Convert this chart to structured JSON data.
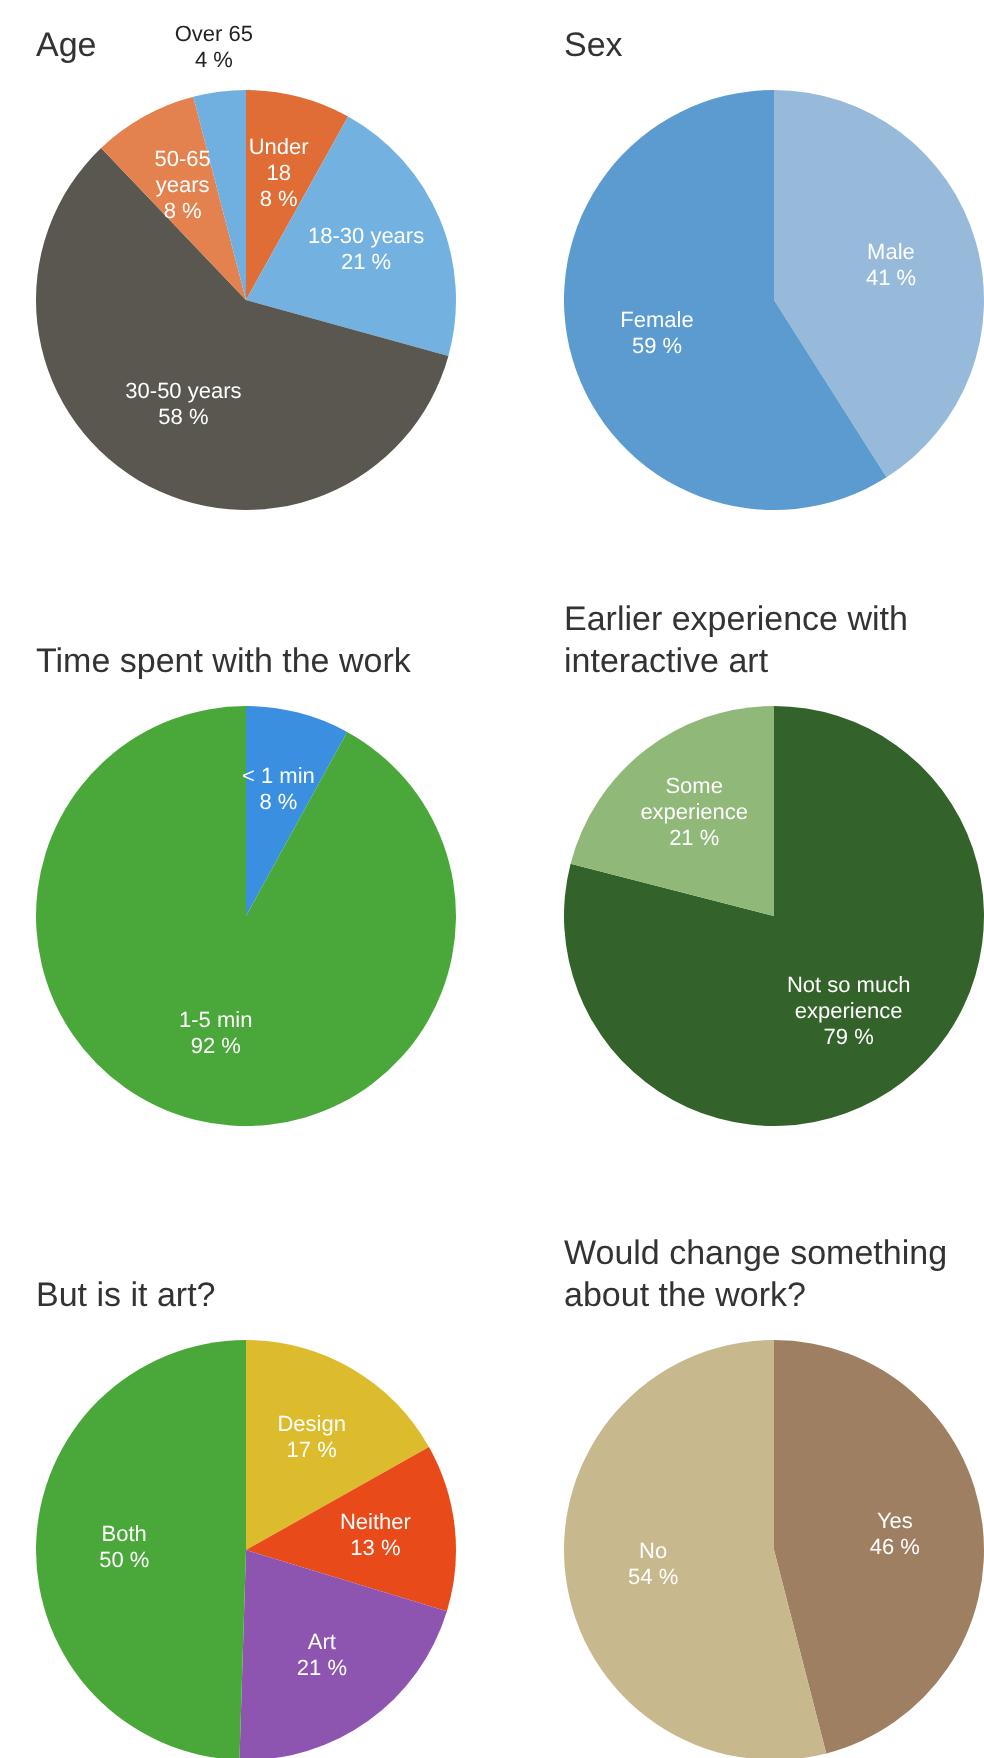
{
  "chart_data": [
    {
      "type": "pie",
      "title": "Age",
      "categories": [
        "Under 18",
        "18-30 years",
        "30-50 years",
        "50-65 years",
        "Over 65"
      ],
      "values": [
        8,
        21,
        58,
        8,
        4
      ],
      "value_labels": [
        "8 %",
        "21 %",
        "58 %",
        "8 %",
        "4 %"
      ],
      "colors": [
        "#e06d35",
        "#73b2e0",
        "#5a5650",
        "#e3814f",
        "#6fb0e0"
      ]
    },
    {
      "type": "pie",
      "title": "Sex",
      "categories": [
        "Male",
        "Female"
      ],
      "values": [
        41,
        59
      ],
      "value_labels": [
        "41 %",
        "59 %"
      ],
      "colors": [
        "#97bada",
        "#5b9bd0"
      ]
    },
    {
      "type": "pie",
      "title": "Time spent with the work",
      "categories": [
        "< 1 min",
        "1-5 min"
      ],
      "values": [
        8,
        92
      ],
      "value_labels": [
        "8 %",
        "92 %"
      ],
      "colors": [
        "#3a8fe0",
        "#4aa83a"
      ]
    },
    {
      "type": "pie",
      "title": "Earlier experience with interactive art",
      "categories": [
        "Not so much experience",
        "Some experience"
      ],
      "values": [
        79,
        21
      ],
      "value_labels": [
        "79 %",
        "21 %"
      ],
      "colors": [
        "#33622a",
        "#90b878"
      ]
    },
    {
      "type": "pie",
      "title": "But is it art?",
      "categories": [
        "Design",
        "Neither",
        "Art",
        "Both"
      ],
      "values": [
        17,
        13,
        21,
        50
      ],
      "value_labels": [
        "17 %",
        "13 %",
        "21 %",
        "50 %"
      ],
      "colors": [
        "#dcbc2c",
        "#e84a1a",
        "#8e55b0",
        "#4aa83a"
      ]
    },
    {
      "type": "pie",
      "title": "Would change something about the work?",
      "categories": [
        "Yes",
        "No"
      ],
      "values": [
        46,
        54
      ],
      "value_labels": [
        "46 %",
        "54 %"
      ],
      "colors": [
        "#9e7f62",
        "#c8b88e"
      ]
    }
  ]
}
